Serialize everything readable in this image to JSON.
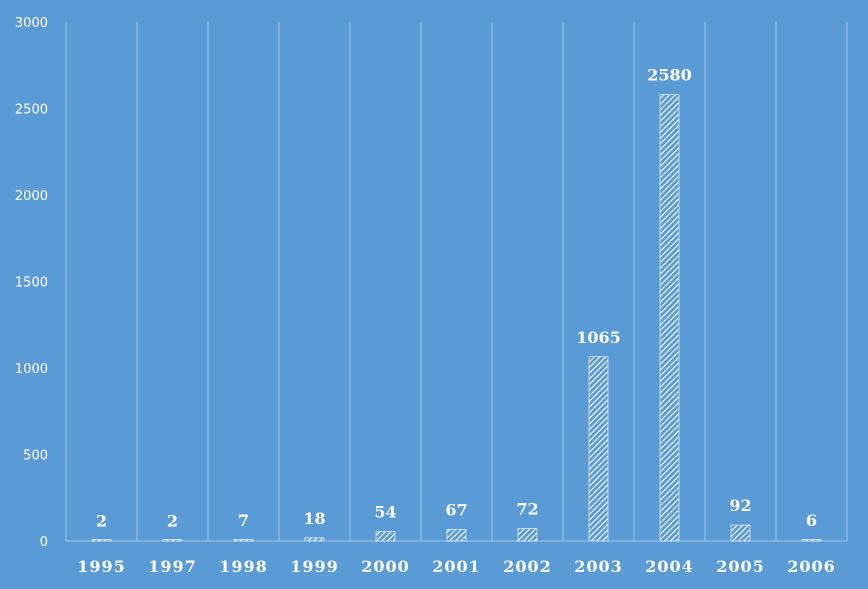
{
  "chart_data": {
    "type": "bar",
    "title": "",
    "xlabel": "",
    "ylabel": "",
    "categories": [
      "1995",
      "1997",
      "1998",
      "1999",
      "2000",
      "2001",
      "2002",
      "2003",
      "2004",
      "2005",
      "2006"
    ],
    "values": [
      2,
      2,
      7,
      18,
      54,
      67,
      72,
      1065,
      2580,
      92,
      6
    ],
    "ylim": [
      0,
      3000
    ],
    "yticks": [
      0,
      500,
      1000,
      1500,
      2000,
      2500,
      3000
    ],
    "grid": "vertical separators between categories",
    "bar_fill": "diagonal hatch",
    "colors": {
      "background": "#5b9bd5",
      "bar": "#ffffff",
      "gridline": "#9cc3e6",
      "text": "#ffffff"
    }
  }
}
